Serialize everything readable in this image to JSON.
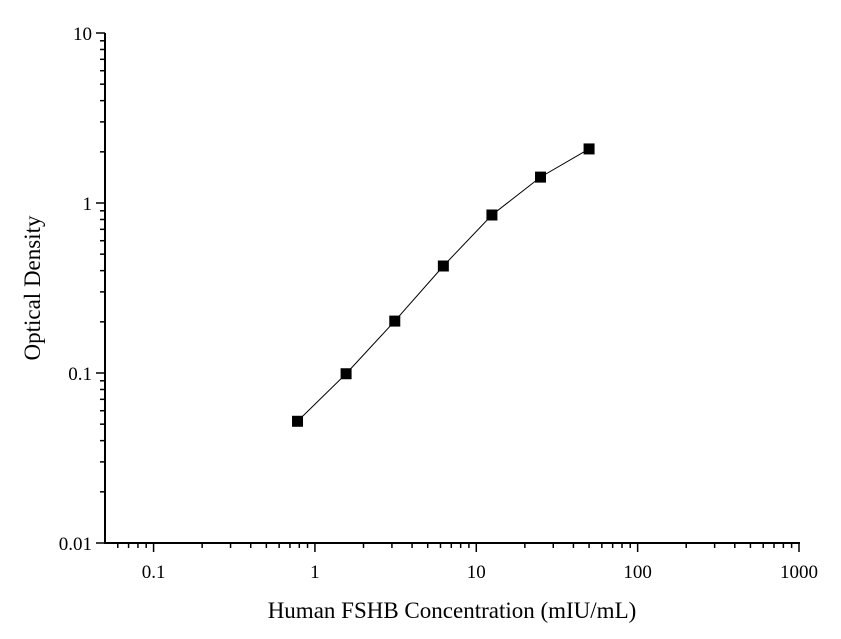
{
  "chart_data": {
    "type": "line",
    "x_label": "Human FSHB Concentration (mIU/mL)",
    "y_label": "Optical Density",
    "x": [
      0.78,
      1.56,
      3.125,
      6.25,
      12.5,
      25,
      50
    ],
    "series": [
      {
        "color": "#000000",
        "values": [
          0.052,
          0.099,
          0.202,
          0.426,
          0.85,
          1.42,
          2.08
        ]
      }
    ],
    "xlim": [
      0.05,
      1000
    ],
    "ylim": [
      0.01,
      10
    ],
    "xticks": [
      0.1,
      1,
      10,
      100,
      1000
    ],
    "yticks": [
      0.01,
      0.1,
      1,
      10
    ],
    "xscale": "log",
    "yscale": "log",
    "marker": "square",
    "grid": false
  }
}
